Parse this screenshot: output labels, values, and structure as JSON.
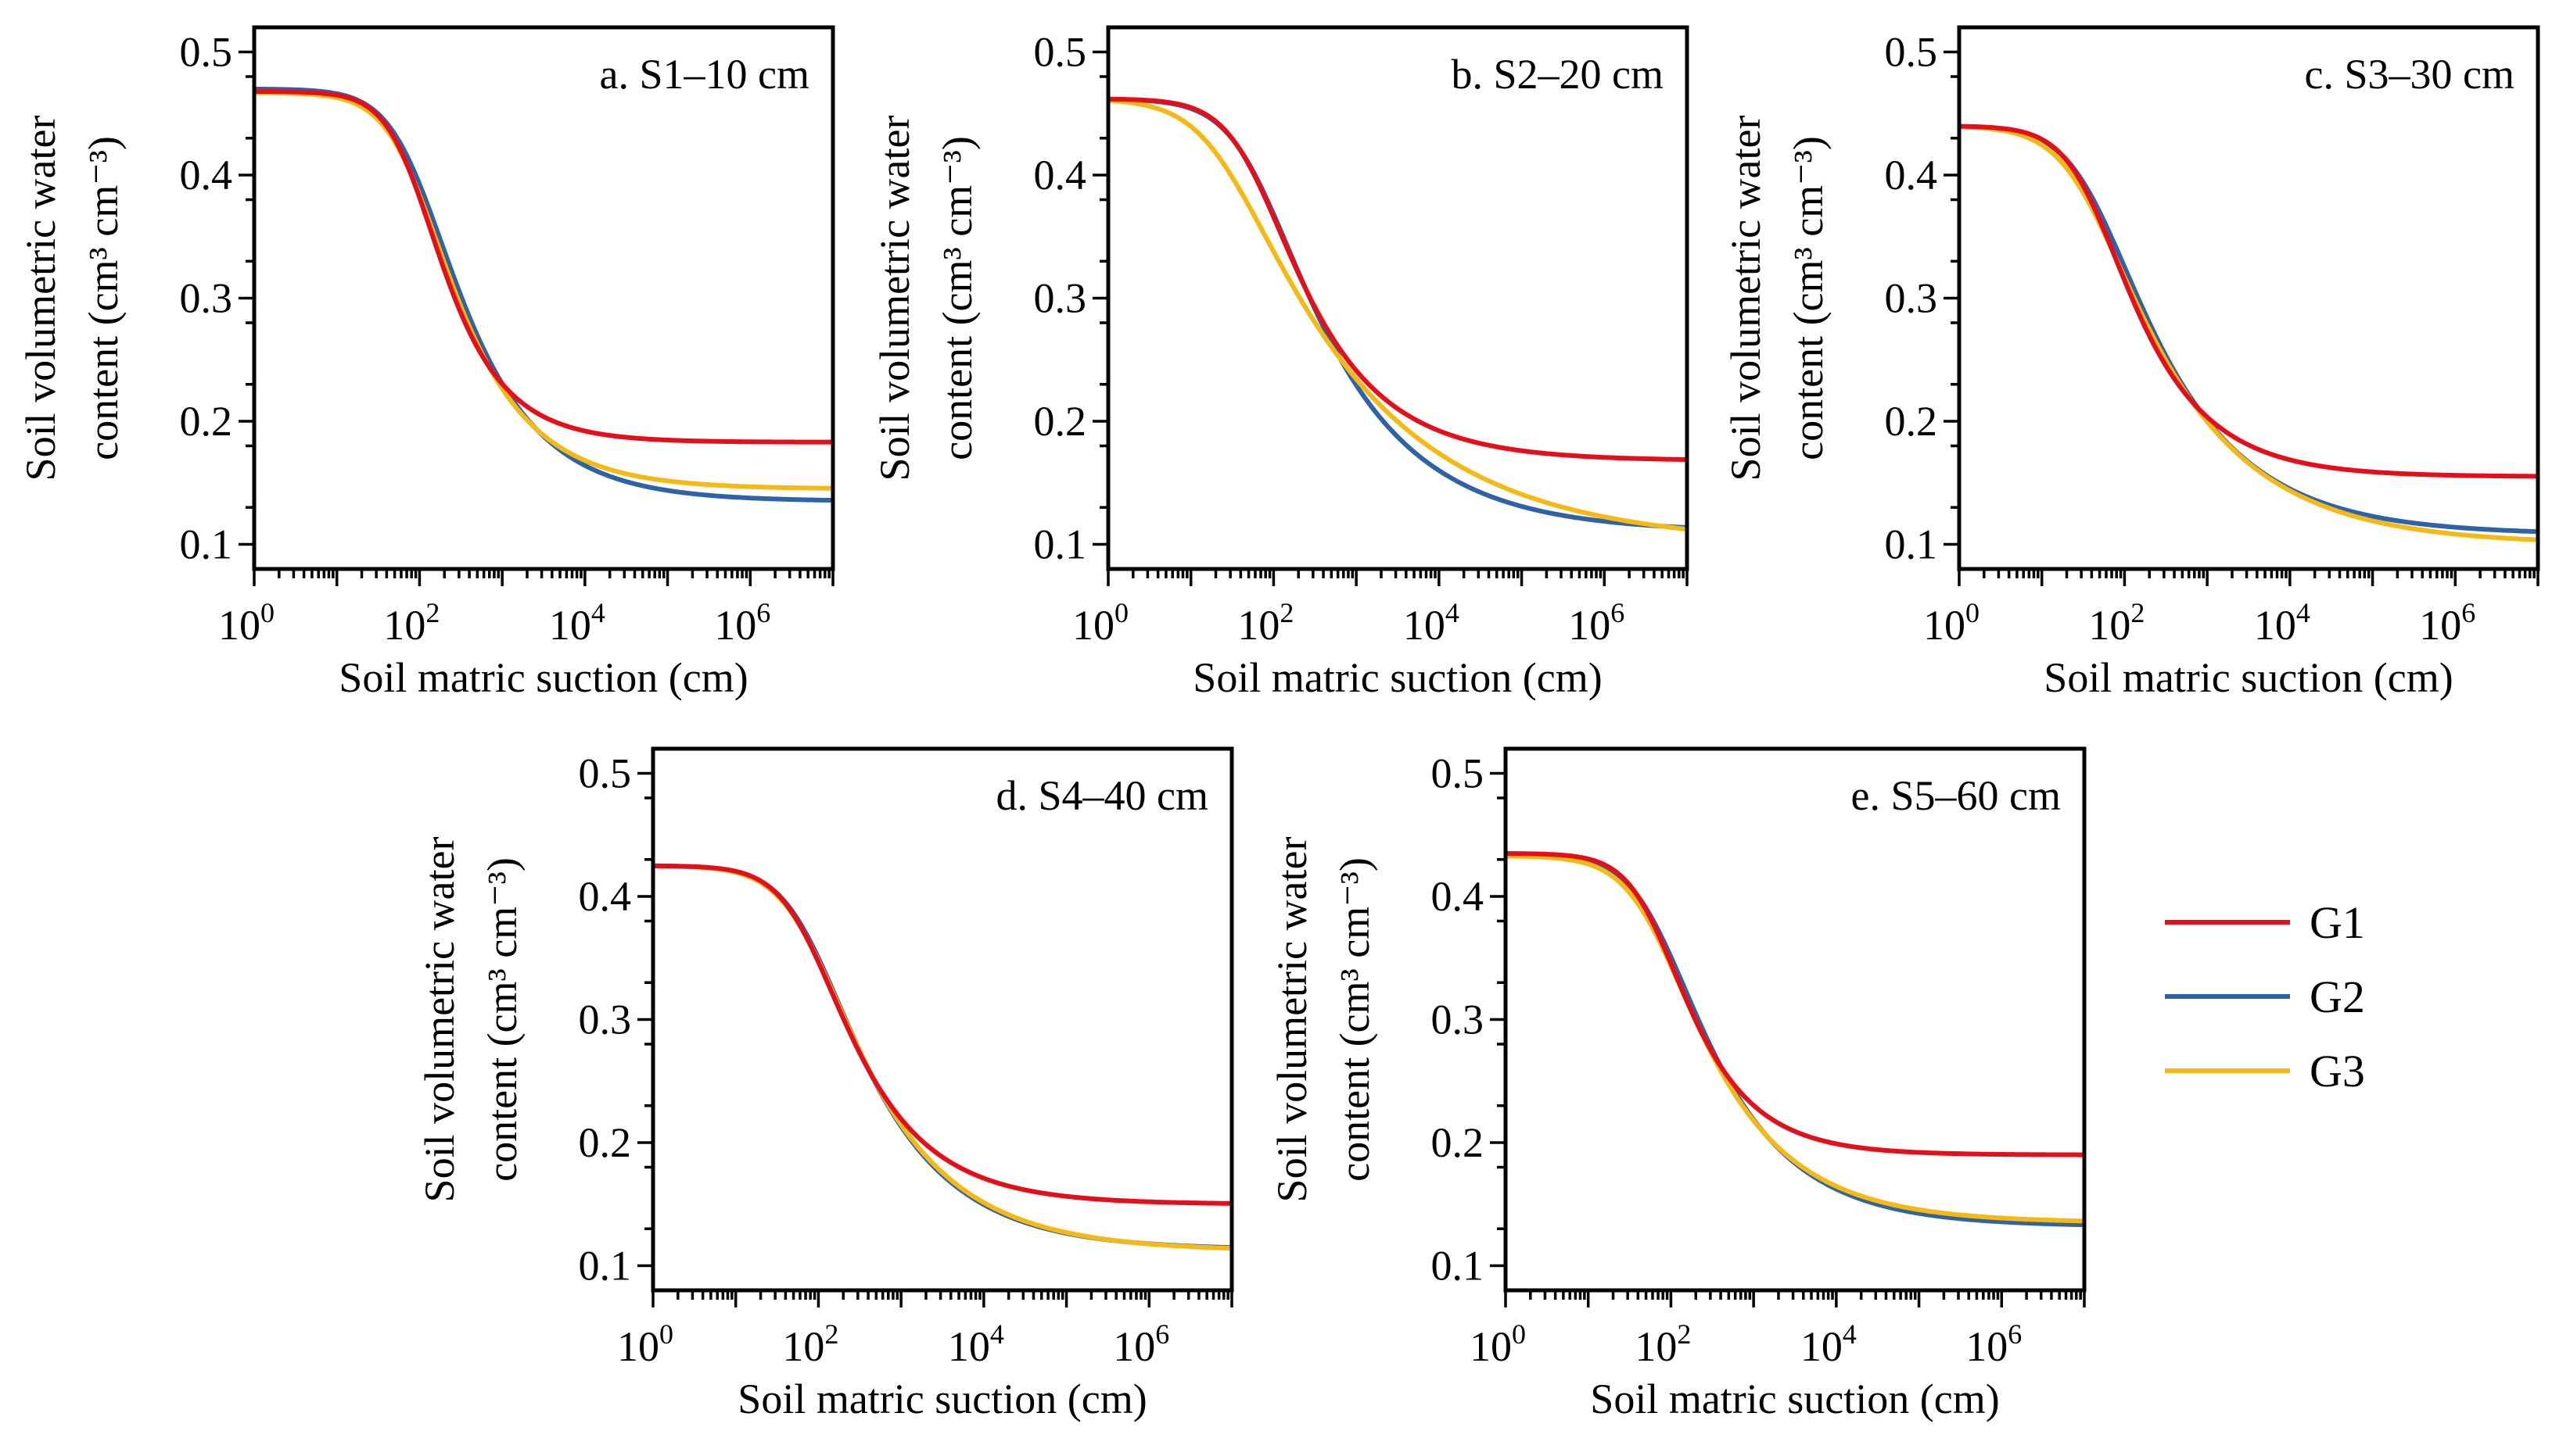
{
  "figure": {
    "background": "#ffffff"
  },
  "legend": {
    "entries": [
      {
        "name": "G1",
        "color": "#e3101b"
      },
      {
        "name": "G2",
        "color": "#2f63a8"
      },
      {
        "name": "G3",
        "color": "#f5b915"
      }
    ]
  },
  "chart_data": [
    {
      "type": "line",
      "title": "a. S1–10 cm",
      "xlabel": "Soil matric suction (cm)",
      "ylabel_line1": "Soil volumetric water",
      "ylabel_line2": "content (cm³ cm⁻³)",
      "xscale": "log10",
      "xlim_log10": [
        0,
        7
      ],
      "ylim": [
        0.08,
        0.52
      ],
      "xtick_exponents": [
        "0",
        "2",
        "4",
        "6"
      ],
      "yticks": [
        "0.1",
        "0.2",
        "0.3",
        "0.4",
        "0.5"
      ],
      "series": [
        {
          "name": "G1",
          "theta_s": 0.468,
          "theta_r": 0.183,
          "alpha": 0.012,
          "n": 1.72
        },
        {
          "name": "G2",
          "theta_s": 0.47,
          "theta_r": 0.135,
          "alpha": 0.011,
          "n": 1.52
        },
        {
          "name": "G3",
          "theta_s": 0.467,
          "theta_r": 0.145,
          "alpha": 0.012,
          "n": 1.55
        }
      ]
    },
    {
      "type": "line",
      "title": "b. S2–20 cm",
      "xlabel": "Soil matric suction (cm)",
      "ylabel_line1": "Soil volumetric water",
      "ylabel_line2": "content (cm³ cm⁻³)",
      "xscale": "log10",
      "xlim_log10": [
        0,
        7
      ],
      "ylim": [
        0.08,
        0.52
      ],
      "xtick_exponents": [
        "0",
        "2",
        "4",
        "6"
      ],
      "yticks": [
        "0.1",
        "0.2",
        "0.3",
        "0.4",
        "0.5"
      ],
      "series": [
        {
          "name": "G1",
          "theta_s": 0.462,
          "theta_r": 0.168,
          "alpha": 0.018,
          "n": 1.48
        },
        {
          "name": "G2",
          "theta_s": 0.462,
          "theta_r": 0.11,
          "alpha": 0.017,
          "n": 1.38
        },
        {
          "name": "G3",
          "theta_s": 0.462,
          "theta_r": 0.1,
          "alpha": 0.045,
          "n": 1.26
        }
      ]
    },
    {
      "type": "line",
      "title": "c. S3–30 cm",
      "xlabel": "Soil matric suction (cm)",
      "ylabel_line1": "Soil volumetric water",
      "ylabel_line2": "content (cm³ cm⁻³)",
      "xscale": "log10",
      "xlim_log10": [
        0,
        7
      ],
      "ylim": [
        0.08,
        0.52
      ],
      "xtick_exponents": [
        "0",
        "2",
        "4",
        "6"
      ],
      "yticks": [
        "0.1",
        "0.2",
        "0.3",
        "0.4",
        "0.5"
      ],
      "series": [
        {
          "name": "G1",
          "theta_s": 0.44,
          "theta_r": 0.155,
          "alpha": 0.025,
          "n": 1.55
        },
        {
          "name": "G2",
          "theta_s": 0.44,
          "theta_r": 0.108,
          "alpha": 0.024,
          "n": 1.4
        },
        {
          "name": "G3",
          "theta_s": 0.44,
          "theta_r": 0.1,
          "alpha": 0.03,
          "n": 1.36
        }
      ]
    },
    {
      "type": "line",
      "title": "d. S4–40 cm",
      "xlabel": "Soil matric suction (cm)",
      "ylabel_line1": "Soil volumetric water",
      "ylabel_line2": "content (cm³ cm⁻³)",
      "xscale": "log10",
      "xlim_log10": [
        0,
        7
      ],
      "ylim": [
        0.08,
        0.52
      ],
      "xtick_exponents": [
        "0",
        "2",
        "4",
        "6"
      ],
      "yticks": [
        "0.1",
        "0.2",
        "0.3",
        "0.4",
        "0.5"
      ],
      "series": [
        {
          "name": "G1",
          "theta_s": 0.425,
          "theta_r": 0.15,
          "alpha": 0.014,
          "n": 1.52
        },
        {
          "name": "G2",
          "theta_s": 0.425,
          "theta_r": 0.113,
          "alpha": 0.013,
          "n": 1.44
        },
        {
          "name": "G3",
          "theta_s": 0.425,
          "theta_r": 0.112,
          "alpha": 0.014,
          "n": 1.42
        }
      ]
    },
    {
      "type": "line",
      "title": "e. S5–60 cm",
      "xlabel": "Soil matric suction (cm)",
      "ylabel_line1": "Soil volumetric water",
      "ylabel_line2": "content (cm³ cm⁻³)",
      "xscale": "log10",
      "xlim_log10": [
        0,
        7
      ],
      "ylim": [
        0.08,
        0.52
      ],
      "xtick_exponents": [
        "0",
        "2",
        "4",
        "6"
      ],
      "yticks": [
        "0.1",
        "0.2",
        "0.3",
        "0.4",
        "0.5"
      ],
      "series": [
        {
          "name": "G1",
          "theta_s": 0.435,
          "theta_r": 0.19,
          "alpha": 0.016,
          "n": 1.65
        },
        {
          "name": "G2",
          "theta_s": 0.435,
          "theta_r": 0.132,
          "alpha": 0.015,
          "n": 1.46
        },
        {
          "name": "G3",
          "theta_s": 0.433,
          "theta_r": 0.135,
          "alpha": 0.017,
          "n": 1.45
        }
      ]
    }
  ]
}
